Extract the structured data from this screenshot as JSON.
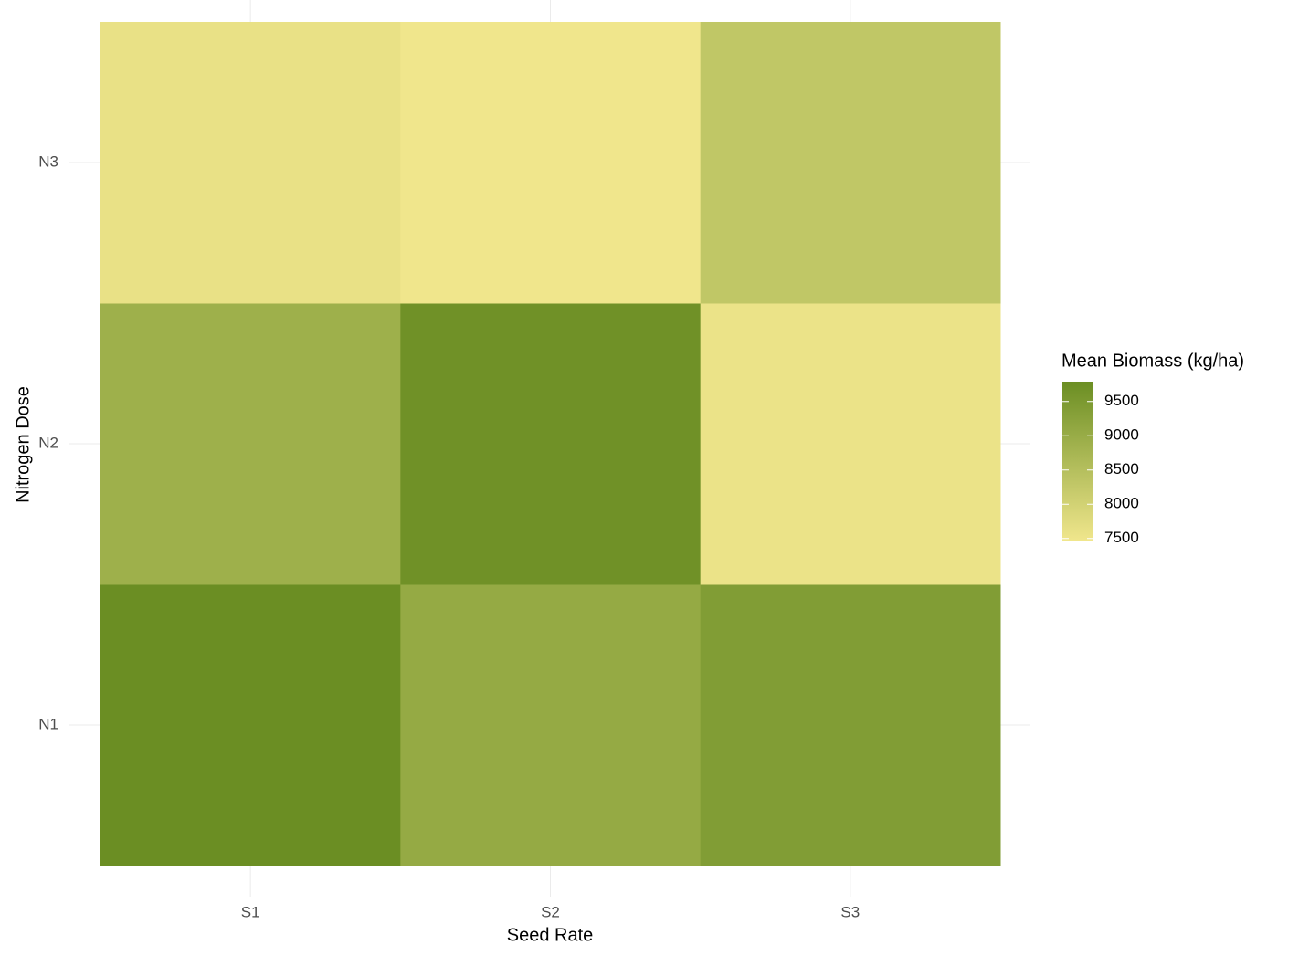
{
  "chart_data": {
    "type": "heatmap",
    "x_label": "Seed Rate",
    "y_label": "Nitrogen Dose",
    "x_categories": [
      "S1",
      "S2",
      "S3"
    ],
    "y_categories": [
      "N1",
      "N2",
      "N3"
    ],
    "values": [
      [
        9790,
        9050,
        9400
      ],
      [
        8900,
        9700,
        7550
      ],
      [
        7600,
        7470,
        8300
      ]
    ],
    "legend_title": "Mean Biomass (kg/ha)",
    "clim": [
      7470,
      9790
    ],
    "cticks": [
      7500,
      8000,
      8500,
      9000,
      9500
    ],
    "low_color": "#f0e68c",
    "high_color": "#6b8e23",
    "grid": true,
    "legend_position": "right"
  }
}
